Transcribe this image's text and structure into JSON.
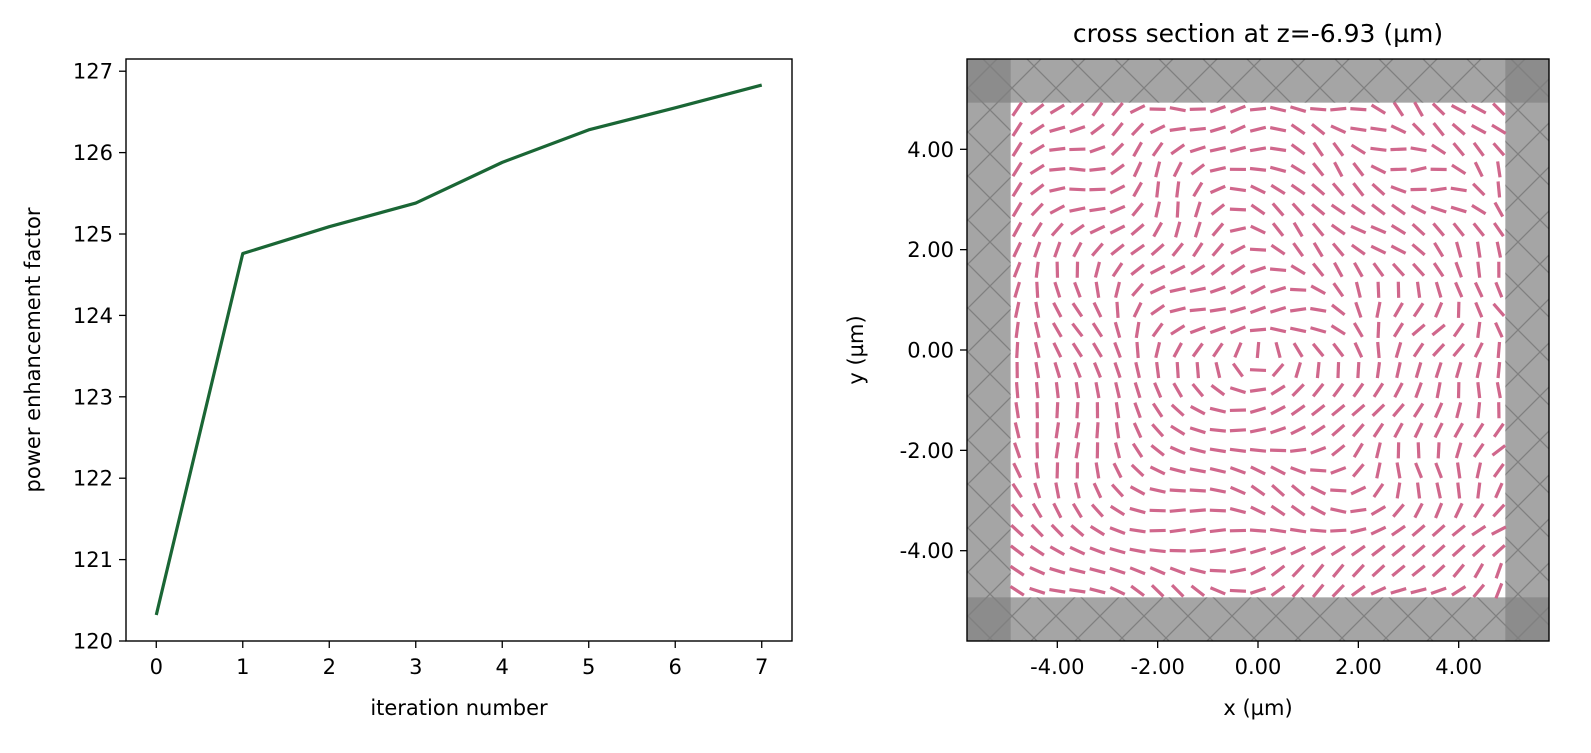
{
  "chart_data": [
    {
      "type": "line",
      "title": "",
      "xlabel": "iteration number",
      "ylabel": "power enhancement factor",
      "x": [
        0,
        1,
        2,
        3,
        4,
        5,
        6,
        7
      ],
      "series": [
        {
          "values": [
            120.32,
            124.76,
            125.09,
            125.38,
            125.88,
            126.28,
            126.55,
            126.83
          ]
        }
      ],
      "xlim": [
        -0.35,
        7.35
      ],
      "ylim": [
        120.0,
        127.15
      ],
      "xticks": [
        0,
        1,
        2,
        3,
        4,
        5,
        6,
        7
      ],
      "xtick_labels": [
        "0",
        "1",
        "2",
        "3",
        "4",
        "5",
        "6",
        "7"
      ],
      "yticks": [
        120,
        121,
        122,
        123,
        124,
        125,
        126,
        127
      ],
      "ytick_labels": [
        "120",
        "121",
        "122",
        "123",
        "124",
        "125",
        "126",
        "127"
      ],
      "grid": false,
      "line_color": "#1a6635"
    },
    {
      "type": "heatmap",
      "title": "cross section at z=-6.93 (µm)",
      "xlabel": "x (µm)",
      "ylabel": "y (µm)",
      "xlim": [
        -5.8,
        5.8
      ],
      "ylim": [
        -5.8,
        5.8
      ],
      "xticks": [
        -4,
        -2,
        0,
        2,
        4
      ],
      "xtick_labels": [
        "-4.00",
        "-2.00",
        "0.00",
        "2.00",
        "4.00"
      ],
      "yticks": [
        -4,
        -2,
        0,
        2,
        4
      ],
      "ytick_labels": [
        "-4.00",
        "-2.00",
        "0.00",
        "2.00",
        "4.00"
      ],
      "structure_region": {
        "xmin": -4.93,
        "xmax": 4.93,
        "ymin": -4.93,
        "ymax": 4.93
      },
      "pixel_grid": {
        "count": 25,
        "min": -4.8,
        "max": 4.8
      },
      "pml_color": "#a5a5a5",
      "pml_corner_color": "#8c8c8c",
      "hatch_color": "#808080",
      "pixel_color": "#d0678c",
      "background": "#ffffff"
    }
  ]
}
